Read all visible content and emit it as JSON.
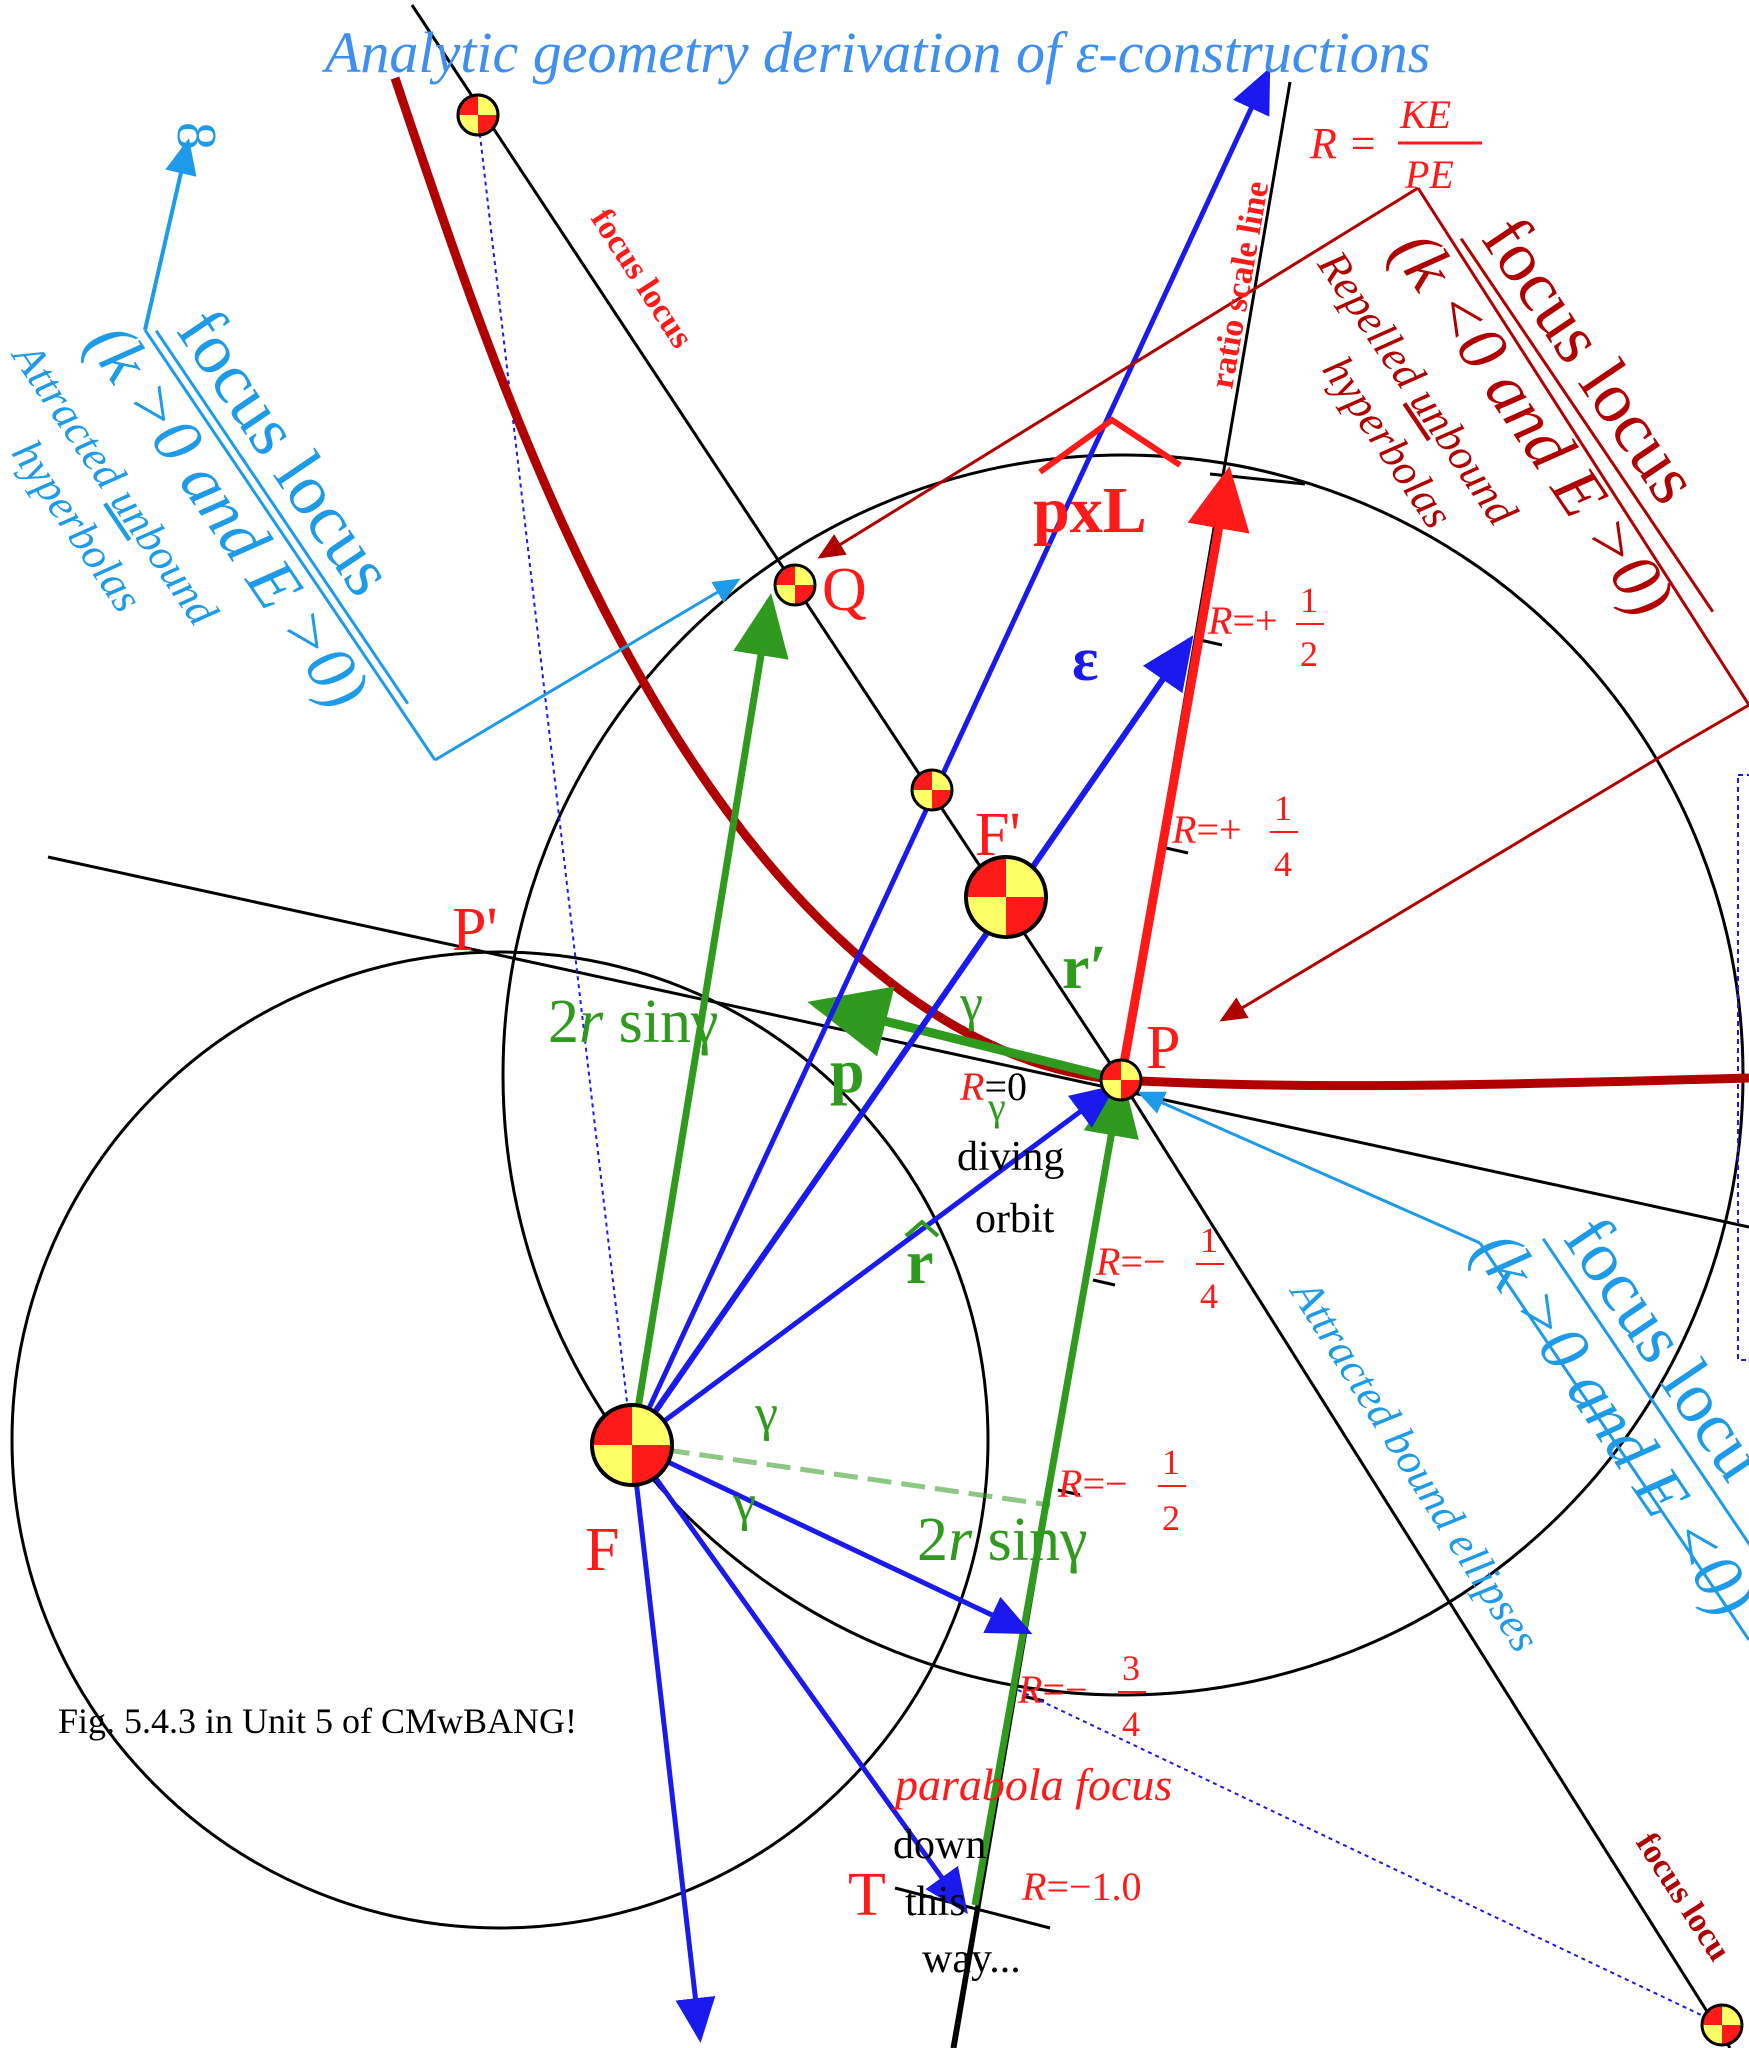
{
  "title": "Analytic geometry derivation of ε-constructions",
  "caption": "Fig. 5.4.3 in Unit 5 of CMwBANG!",
  "colors": {
    "blue_label": "#3f8ff0",
    "cyan": "#1e9be8",
    "dark_red": "#b00000",
    "red": "#ff1a1a",
    "green": "#2f9a1e",
    "blue": "#1a1aee",
    "black": "#000000"
  },
  "ratio": {
    "lhs": "R =",
    "num": "KE",
    "den": "PE",
    "scale_label": "ratio scale line"
  },
  "points": {
    "Q": "Q",
    "F": "F",
    "Fp": "F'",
    "P": "P",
    "Pp": "P'",
    "T": "T"
  },
  "vectors": {
    "pxL": "pxL",
    "eps": "ε",
    "r_prime": "r′",
    "p": "p",
    "r_hat": "r"
  },
  "angles": {
    "gamma": "γ"
  },
  "expr_2r_sin": {
    "a": "2",
    "r": "r",
    "b": " sinγ"
  },
  "infinity": "8",
  "ratio_marks": [
    {
      "lhs": "R",
      "eq": "=+",
      "num": "1",
      "den": "2"
    },
    {
      "lhs": "R",
      "eq": "=+",
      "num": "1",
      "den": "4"
    },
    {
      "lhs": "R",
      "eq": "=0"
    },
    {
      "lhs": "R",
      "eq": "=−",
      "num": "1",
      "den": "4"
    },
    {
      "lhs": "R",
      "eq": "=−",
      "num": "1",
      "den": "2"
    },
    {
      "lhs": "R",
      "eq": "=−",
      "num": "3",
      "den": "4"
    },
    {
      "lhs": "R",
      "eq": "=−1.0"
    }
  ],
  "labels": {
    "focus_locus_small": "focus locus",
    "focus_locus_big": "focus locus",
    "focus_loc_cut": "focus locu",
    "focus_locu_bottom": "focus locu",
    "k_pos_e_pos": "(k >0 and E >0)",
    "k_neg_e_pos": "(k <0 and E >0)",
    "k_pos_e_neg": "(k >0 and E <0)",
    "attracted_unbound_pre": "Attracted ",
    "unbound_un": "un",
    "unbound_rest": "bound",
    "hyperbolas": "hyperbolas",
    "repelled_pre": "Repelled ",
    "attracted_bound_ellipses": "Attracted bound ellipses",
    "diving": "diving",
    "orbit": "orbit",
    "parabola_focus": "parabola focus",
    "down": "down",
    "this": "this",
    "way": "way..."
  }
}
